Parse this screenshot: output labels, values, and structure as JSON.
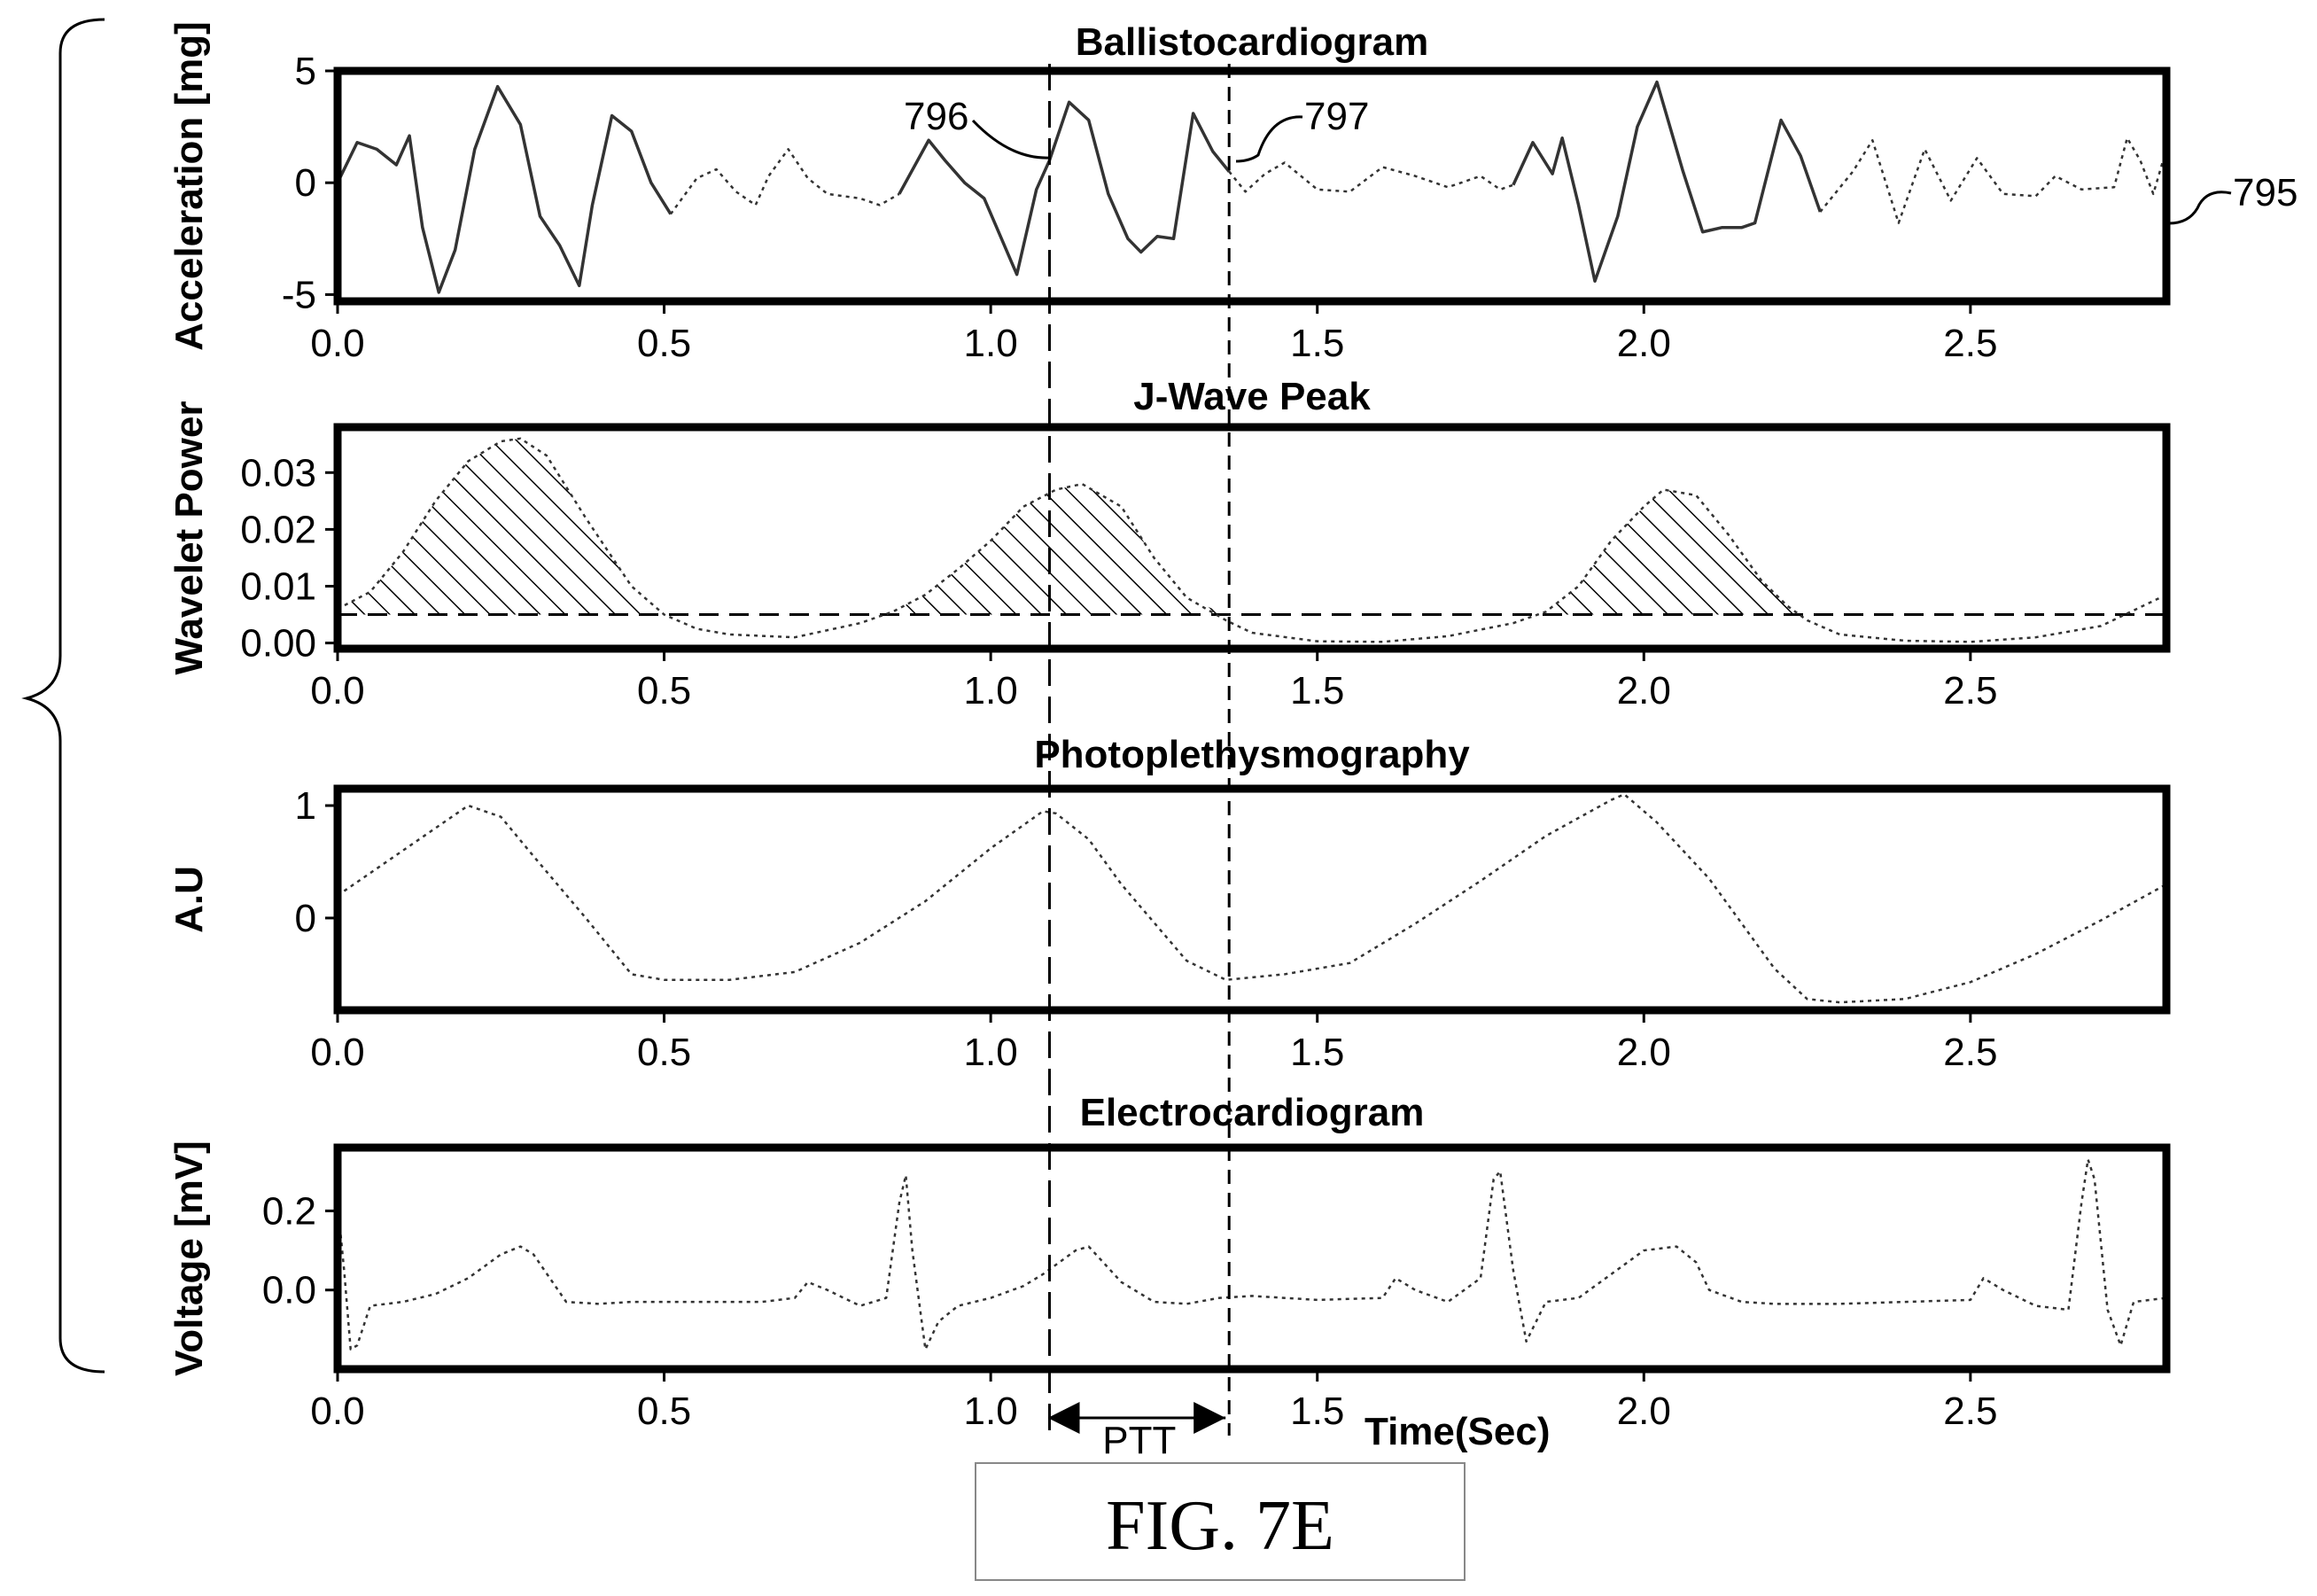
{
  "figure": {
    "caption": "FIG. 7E",
    "xlabel": "Time(Sec)",
    "ptt_label": "PTT",
    "ref_labels": {
      "signal": "795",
      "start_marker": "796",
      "end_marker": "797"
    },
    "markers_x_sec": [
      1.09,
      1.365
    ],
    "xtick_labels": [
      "0.0",
      "0.5",
      "1.0",
      "1.5",
      "2.0",
      "2.5"
    ]
  },
  "chart_data": [
    {
      "type": "line",
      "title": "Ballistocardiogram",
      "xlabel": "",
      "ylabel": "Acceleration [mg]",
      "xlim": [
        0,
        2.8
      ],
      "ylim": [
        -5.3,
        5.0
      ],
      "xticks": [
        0.0,
        0.5,
        1.0,
        1.5,
        2.0,
        2.5
      ],
      "yticks": [
        5,
        0,
        -5
      ],
      "ytick_labels": [
        "5",
        "0",
        "-5"
      ],
      "series": [
        {
          "style": "solid",
          "segments": [
            [
              [
                0.0,
                0.0
              ],
              [
                0.03,
                1.8
              ],
              [
                0.06,
                1.5
              ],
              [
                0.09,
                0.8
              ],
              [
                0.11,
                2.1
              ],
              [
                0.13,
                -2.0
              ],
              [
                0.155,
                -4.9
              ],
              [
                0.18,
                -3.0
              ],
              [
                0.21,
                1.5
              ],
              [
                0.245,
                4.3
              ],
              [
                0.28,
                2.6
              ],
              [
                0.31,
                -1.5
              ],
              [
                0.34,
                -2.8
              ],
              [
                0.37,
                -4.6
              ],
              [
                0.39,
                -1.0
              ],
              [
                0.42,
                3.0
              ],
              [
                0.45,
                2.3
              ],
              [
                0.48,
                0.0
              ],
              [
                0.51,
                -1.4
              ]
            ],
            [
              [
                0.86,
                -0.5
              ],
              [
                0.905,
                1.9
              ],
              [
                0.93,
                1.0
              ],
              [
                0.96,
                0.0
              ],
              [
                0.99,
                -0.7
              ],
              [
                1.04,
                -4.1
              ],
              [
                1.07,
                -0.3
              ],
              [
                1.09,
                1.0
              ],
              [
                1.12,
                3.6
              ],
              [
                1.15,
                2.8
              ],
              [
                1.18,
                -0.5
              ],
              [
                1.21,
                -2.5
              ],
              [
                1.23,
                -3.1
              ],
              [
                1.255,
                -2.4
              ],
              [
                1.28,
                -2.5
              ],
              [
                1.31,
                3.1
              ],
              [
                1.34,
                1.4
              ],
              [
                1.365,
                0.5
              ]
            ],
            [
              [
                1.8,
                -0.1
              ],
              [
                1.83,
                1.8
              ],
              [
                1.86,
                0.4
              ],
              [
                1.875,
                2.0
              ],
              [
                1.9,
                -1.0
              ],
              [
                1.925,
                -4.4
              ],
              [
                1.96,
                -1.5
              ],
              [
                1.99,
                2.5
              ],
              [
                2.02,
                4.5
              ],
              [
                2.06,
                0.5
              ],
              [
                2.09,
                -2.2
              ],
              [
                2.12,
                -2.0
              ],
              [
                2.15,
                -2.0
              ],
              [
                2.17,
                -1.8
              ],
              [
                2.21,
                2.8
              ],
              [
                2.24,
                1.2
              ],
              [
                2.27,
                -1.3
              ]
            ]
          ]
        },
        {
          "style": "dotted",
          "segments": [
            [
              [
                0.51,
                -1.4
              ],
              [
                0.55,
                0.2
              ],
              [
                0.58,
                0.6
              ],
              [
                0.61,
                -0.4
              ],
              [
                0.64,
                -1.0
              ],
              [
                0.66,
                0.3
              ],
              [
                0.69,
                1.5
              ],
              [
                0.72,
                0.2
              ],
              [
                0.75,
                -0.5
              ],
              [
                0.8,
                -0.7
              ],
              [
                0.83,
                -1.0
              ],
              [
                0.86,
                -0.5
              ]
            ],
            [
              [
                1.365,
                0.5
              ],
              [
                1.39,
                -0.4
              ],
              [
                1.42,
                0.4
              ],
              [
                1.45,
                0.9
              ],
              [
                1.5,
                -0.3
              ],
              [
                1.55,
                -0.4
              ],
              [
                1.6,
                0.7
              ],
              [
                1.65,
                0.3
              ],
              [
                1.7,
                -0.2
              ],
              [
                1.75,
                0.3
              ],
              [
                1.78,
                -0.3
              ],
              [
                1.8,
                -0.1
              ]
            ],
            [
              [
                2.27,
                -1.3
              ],
              [
                2.32,
                0.5
              ],
              [
                2.35,
                1.9
              ],
              [
                2.39,
                -1.8
              ],
              [
                2.43,
                1.5
              ],
              [
                2.47,
                -0.8
              ],
              [
                2.51,
                1.1
              ],
              [
                2.55,
                -0.5
              ],
              [
                2.6,
                -0.6
              ],
              [
                2.63,
                0.3
              ],
              [
                2.67,
                -0.3
              ],
              [
                2.72,
                -0.2
              ],
              [
                2.74,
                2.0
              ],
              [
                2.76,
                1.0
              ],
              [
                2.78,
                -0.5
              ],
              [
                2.8,
                1.5
              ]
            ]
          ]
        }
      ]
    },
    {
      "type": "area",
      "title": "J-Wave Peak",
      "xlabel": "",
      "ylabel": "Wavelet Power",
      "xlim": [
        0,
        2.8
      ],
      "ylim": [
        -0.001,
        0.038
      ],
      "xticks": [
        0.0,
        0.5,
        1.0,
        1.5,
        2.0,
        2.5
      ],
      "yticks": [
        0.03,
        0.02,
        0.01,
        0.0
      ],
      "ytick_labels": [
        "0.03",
        "0.02",
        "0.01",
        "0.00"
      ],
      "threshold": 0.005,
      "series": [
        {
          "style": "dotted",
          "hatched_above_threshold": true,
          "x": [
            0.0,
            0.05,
            0.1,
            0.15,
            0.2,
            0.25,
            0.28,
            0.32,
            0.38,
            0.45,
            0.5,
            0.55,
            0.6,
            0.7,
            0.8,
            0.85,
            0.9,
            0.95,
            1.0,
            1.05,
            1.1,
            1.14,
            1.2,
            1.25,
            1.3,
            1.36,
            1.4,
            1.5,
            1.6,
            1.7,
            1.8,
            1.85,
            1.9,
            1.95,
            2.0,
            2.03,
            2.08,
            2.13,
            2.18,
            2.22,
            2.25,
            2.3,
            2.4,
            2.5,
            2.6,
            2.7,
            2.8
          ],
          "y": [
            0.006,
            0.009,
            0.016,
            0.025,
            0.032,
            0.0355,
            0.036,
            0.033,
            0.022,
            0.01,
            0.005,
            0.0025,
            0.0015,
            0.001,
            0.0035,
            0.0055,
            0.0085,
            0.013,
            0.018,
            0.024,
            0.027,
            0.028,
            0.024,
            0.015,
            0.008,
            0.004,
            0.0018,
            0.0003,
            0.0002,
            0.0012,
            0.0035,
            0.0055,
            0.01,
            0.018,
            0.024,
            0.027,
            0.026,
            0.019,
            0.011,
            0.0065,
            0.004,
            0.0015,
            0.0004,
            0.0002,
            0.001,
            0.003,
            0.0085
          ]
        }
      ]
    },
    {
      "type": "line",
      "title": "Photoplethysmography",
      "xlabel": "",
      "ylabel": "A.U",
      "xlim": [
        0,
        2.8
      ],
      "ylim": [
        -0.82,
        1.15
      ],
      "xticks": [
        0.0,
        0.5,
        1.0,
        1.5,
        2.0,
        2.5
      ],
      "yticks": [
        1,
        0
      ],
      "ytick_labels": [
        "1",
        "0"
      ],
      "series": [
        {
          "style": "dotted",
          "x": [
            0.0,
            0.1,
            0.2,
            0.25,
            0.3,
            0.38,
            0.45,
            0.5,
            0.6,
            0.7,
            0.8,
            0.9,
            1.0,
            1.08,
            1.1,
            1.15,
            1.2,
            1.3,
            1.36,
            1.45,
            1.55,
            1.65,
            1.75,
            1.85,
            1.95,
            1.97,
            2.02,
            2.1,
            2.2,
            2.25,
            2.3,
            2.4,
            2.5,
            2.6,
            2.7,
            2.8
          ],
          "y": [
            0.2,
            0.6,
            1.0,
            0.9,
            0.55,
            0.0,
            -0.5,
            -0.55,
            -0.55,
            -0.48,
            -0.22,
            0.15,
            0.62,
            0.95,
            0.93,
            0.7,
            0.3,
            -0.38,
            -0.55,
            -0.5,
            -0.4,
            -0.05,
            0.33,
            0.73,
            1.05,
            1.1,
            0.85,
            0.35,
            -0.45,
            -0.72,
            -0.75,
            -0.72,
            -0.57,
            -0.32,
            -0.02,
            0.3
          ]
        }
      ]
    },
    {
      "type": "line",
      "title": "Electrocardiogram",
      "xlabel": "Time(Sec)",
      "ylabel": "Voltage [mV]",
      "xlim": [
        0,
        2.8
      ],
      "ylim": [
        -0.2,
        0.36
      ],
      "xticks": [
        0.0,
        0.5,
        1.0,
        1.5,
        2.0,
        2.5
      ],
      "yticks": [
        0.2,
        0.0
      ],
      "ytick_labels": [
        "0.2",
        "0.0"
      ],
      "series": [
        {
          "style": "dotted",
          "x": [
            0.0,
            0.01,
            0.02,
            0.03,
            0.05,
            0.1,
            0.15,
            0.2,
            0.25,
            0.28,
            0.3,
            0.35,
            0.4,
            0.45,
            0.5,
            0.55,
            0.6,
            0.65,
            0.7,
            0.72,
            0.75,
            0.8,
            0.84,
            0.86,
            0.87,
            0.88,
            0.9,
            0.92,
            0.95,
            1.0,
            1.05,
            1.08,
            1.13,
            1.15,
            1.2,
            1.25,
            1.3,
            1.35,
            1.4,
            1.5,
            1.6,
            1.62,
            1.65,
            1.7,
            1.75,
            1.77,
            1.78,
            1.8,
            1.82,
            1.85,
            1.9,
            1.95,
            2.0,
            2.05,
            2.08,
            2.1,
            2.15,
            2.2,
            2.3,
            2.4,
            2.5,
            2.52,
            2.55,
            2.6,
            2.65,
            2.67,
            2.68,
            2.69,
            2.71,
            2.73,
            2.75,
            2.8
          ],
          "y": [
            0.22,
            0.05,
            -0.15,
            -0.14,
            -0.04,
            -0.03,
            -0.01,
            0.03,
            0.09,
            0.11,
            0.09,
            -0.03,
            -0.035,
            -0.03,
            -0.03,
            -0.03,
            -0.03,
            -0.03,
            -0.02,
            0.02,
            0.0,
            -0.04,
            -0.02,
            0.22,
            0.29,
            0.1,
            -0.15,
            -0.08,
            -0.04,
            -0.02,
            0.01,
            0.04,
            0.1,
            0.11,
            0.02,
            -0.03,
            -0.035,
            -0.02,
            -0.015,
            -0.025,
            -0.02,
            0.03,
            0.0,
            -0.03,
            0.03,
            0.28,
            0.3,
            0.05,
            -0.13,
            -0.03,
            -0.02,
            0.04,
            0.1,
            0.11,
            0.07,
            0.0,
            -0.03,
            -0.035,
            -0.035,
            -0.03,
            -0.025,
            0.03,
            0.0,
            -0.04,
            -0.05,
            0.22,
            0.33,
            0.28,
            -0.05,
            -0.14,
            -0.03,
            -0.02
          ]
        }
      ]
    }
  ]
}
